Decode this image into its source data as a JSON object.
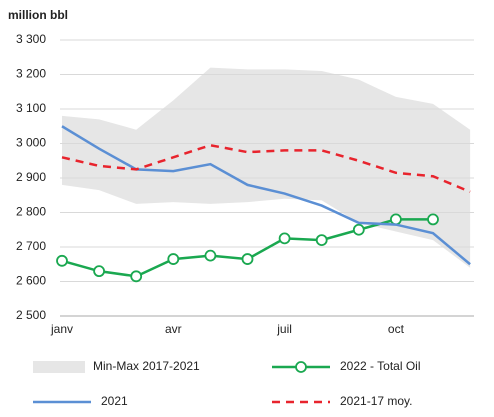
{
  "chart_data": {
    "type": "line",
    "title": "million bbl",
    "categories": [
      "janv",
      null,
      null,
      "avr",
      null,
      null,
      "juil",
      null,
      null,
      "oct",
      null,
      null
    ],
    "ylim": [
      2500,
      3300
    ],
    "yticks": [
      {
        "value": 2500,
        "label": "2 500"
      },
      {
        "value": 2600,
        "label": "2 600"
      },
      {
        "value": 2700,
        "label": "2 700"
      },
      {
        "value": 2800,
        "label": "2 800"
      },
      {
        "value": 2900,
        "label": "2 900"
      },
      {
        "value": 3000,
        "label": "3 000"
      },
      {
        "value": 3100,
        "label": "3 100"
      },
      {
        "value": 3200,
        "label": "3 200"
      },
      {
        "value": 3300,
        "label": "3 300"
      }
    ],
    "grid": true,
    "series": [
      {
        "name": "Min-Max 2017-2021",
        "color": "#e6e6e6",
        "kind": "band",
        "low": [
          2880,
          2865,
          2825,
          2830,
          2825,
          2830,
          2840,
          2835,
          2770,
          2745,
          2720,
          2640
        ],
        "high": [
          3080,
          3070,
          3040,
          3125,
          3220,
          3215,
          3215,
          3210,
          3185,
          3135,
          3115,
          3040
        ]
      },
      {
        "name": "2022 - Total Oil",
        "color": "#1aa850",
        "markers": true,
        "values": [
          2660,
          2630,
          2615,
          2665,
          2675,
          2665,
          2725,
          2720,
          2750,
          2780,
          2780,
          null
        ]
      },
      {
        "name": "2021",
        "color": "#5b8fd4",
        "values": [
          3050,
          2985,
          2925,
          2920,
          2940,
          2880,
          2855,
          2820,
          2770,
          2765,
          2740,
          2650
        ]
      },
      {
        "name": "2021-17 moy.",
        "color": "#e8242d",
        "dashed": true,
        "values": [
          2960,
          2935,
          2925,
          2960,
          2995,
          2975,
          2980,
          2980,
          2950,
          2915,
          2905,
          2860
        ]
      }
    ]
  }
}
